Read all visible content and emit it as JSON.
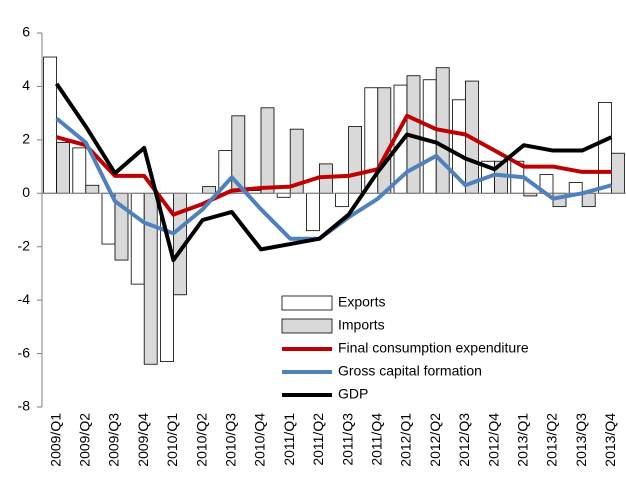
{
  "chart_data": {
    "type": "bar_line",
    "categories": [
      "2009/Q1",
      "2009/Q2",
      "2009/Q3",
      "2009/Q4",
      "2010/Q1",
      "2010/Q2",
      "2010/Q3",
      "2010/Q4",
      "2011/Q1",
      "2011/Q2",
      "2011/Q3",
      "2011/Q4",
      "2012/Q1",
      "2012/Q2",
      "2012/Q3",
      "2012/Q4",
      "2013/Q1",
      "2013/Q2",
      "2013/Q3",
      "2013/Q4"
    ],
    "series": [
      {
        "name": "Exports",
        "kind": "bar",
        "color": "#ffffff",
        "values": [
          5.1,
          1.7,
          -1.9,
          -3.4,
          -6.3,
          0.0,
          1.6,
          0.1,
          -0.15,
          -1.4,
          -0.5,
          3.95,
          4.05,
          4.25,
          3.5,
          1.2,
          1.2,
          0.7,
          0.4,
          3.4
        ]
      },
      {
        "name": "Imports",
        "kind": "bar",
        "color": "#d9d9d9",
        "values": [
          1.9,
          0.3,
          -2.5,
          -6.4,
          -3.8,
          0.25,
          2.9,
          3.2,
          2.4,
          1.1,
          2.5,
          3.95,
          4.4,
          4.7,
          4.2,
          1.2,
          -0.1,
          -0.5,
          -0.5,
          1.5
        ]
      },
      {
        "name": "Final consumption expenditure",
        "kind": "line",
        "color": "#c00000",
        "values": [
          2.1,
          1.8,
          0.65,
          0.65,
          -0.8,
          -0.4,
          0.1,
          0.2,
          0.25,
          0.6,
          0.65,
          0.9,
          2.9,
          2.4,
          2.2,
          1.6,
          1.0,
          1.0,
          0.8,
          0.8
        ]
      },
      {
        "name": "Gross capital formation",
        "kind": "line",
        "color": "#4f81bd",
        "values": [
          2.8,
          1.9,
          -0.3,
          -1.1,
          -1.5,
          -0.6,
          0.6,
          -0.6,
          -1.7,
          -1.7,
          -0.9,
          -0.2,
          0.8,
          1.4,
          0.3,
          0.7,
          0.6,
          -0.2,
          0.0,
          0.3
        ]
      },
      {
        "name": "GDP",
        "kind": "line",
        "color": "#000000",
        "values": [
          4.1,
          2.5,
          0.75,
          1.7,
          -2.5,
          -1.0,
          -0.7,
          -2.1,
          -1.9,
          -1.7,
          -0.8,
          0.8,
          2.2,
          1.9,
          1.3,
          0.9,
          1.8,
          1.6,
          1.6,
          2.1
        ]
      }
    ],
    "ylim": [
      -8,
      6
    ],
    "yticks": [
      -8,
      -6,
      -4,
      -2,
      0,
      2,
      4,
      6
    ],
    "legend": "lower-right"
  }
}
